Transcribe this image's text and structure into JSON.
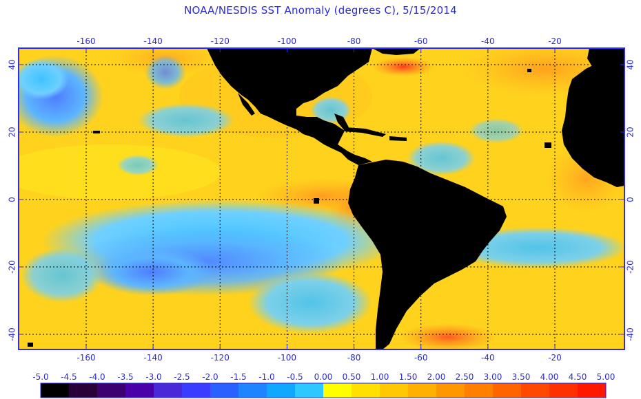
{
  "title": "NOAA/NESDIS SST Anomaly (degrees C), 5/15/2014",
  "axes": {
    "lon_ticks": [
      "-160",
      "-140",
      "-120",
      "-100",
      "-80",
      "-60",
      "-40",
      "-20"
    ],
    "lat_ticks": [
      "40",
      "20",
      "0",
      "-20",
      "-40"
    ]
  },
  "legend": {
    "labels": [
      "-5.0",
      "-4.5",
      "-4.0",
      "-3.5",
      "-3.0",
      "-2.5",
      "-2.0",
      "-1.5",
      "-1.0",
      "-0.5",
      "0.00",
      "0.50",
      "1.00",
      "1.50",
      "2.00",
      "2.50",
      "3.00",
      "3.50",
      "4.00",
      "4.50",
      "5.00"
    ],
    "colors": [
      "#000000",
      "#2a0038",
      "#3c0070",
      "#4a00a8",
      "#4a2ad8",
      "#3a3cff",
      "#2a60ff",
      "#1e84ff",
      "#10a8ff",
      "#2cc8ff",
      "#ffff00",
      "#ffe000",
      "#ffc800",
      "#ffb000",
      "#ff9800",
      "#ff8000",
      "#ff6400",
      "#ff4800",
      "#ff3000",
      "#ff1800"
    ]
  },
  "colors": {
    "land": "#000000",
    "ocean_base": "#ffd21e",
    "frame": "#2a2aff",
    "grid": "#000000"
  }
}
